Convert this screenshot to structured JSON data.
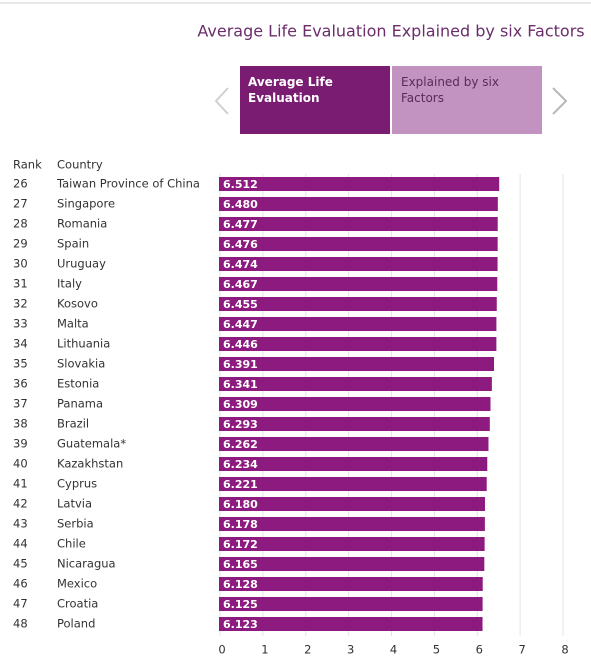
{
  "chart_data": {
    "type": "bar",
    "orientation": "horizontal",
    "title": "Average Life Evaluation Explained by six Factors",
    "tabs": [
      "Average Life Evaluation",
      "Explained by six Factors"
    ],
    "column_headers": [
      "Rank",
      "Country"
    ],
    "ranks": [
      26,
      27,
      28,
      29,
      30,
      31,
      32,
      33,
      34,
      35,
      36,
      37,
      38,
      39,
      40,
      41,
      42,
      43,
      44,
      45,
      46,
      47,
      48
    ],
    "categories": [
      "Taiwan Province of China",
      "Singapore",
      "Romania",
      "Spain",
      "Uruguay",
      "Italy",
      "Kosovo",
      "Malta",
      "Lithuania",
      "Slovakia",
      "Estonia",
      "Panama",
      "Brazil",
      "Guatemala*",
      "Kazakhstan",
      "Cyprus",
      "Latvia",
      "Serbia",
      "Chile",
      "Nicaragua",
      "Mexico",
      "Croatia",
      "Poland"
    ],
    "values": [
      6.512,
      6.48,
      6.477,
      6.476,
      6.474,
      6.467,
      6.455,
      6.447,
      6.446,
      6.391,
      6.341,
      6.309,
      6.293,
      6.262,
      6.234,
      6.221,
      6.18,
      6.178,
      6.172,
      6.165,
      6.128,
      6.125,
      6.123
    ],
    "value_labels": [
      "6.512",
      "6.480",
      "6.477",
      "6.476",
      "6.474",
      "6.467",
      "6.455",
      "6.447",
      "6.446",
      "6.391",
      "6.341",
      "6.309",
      "6.293",
      "6.262",
      "6.234",
      "6.221",
      "6.180",
      "6.178",
      "6.172",
      "6.165",
      "6.128",
      "6.125",
      "6.123"
    ],
    "color": "#8c1a7f",
    "xlim": [
      0,
      8
    ],
    "xticks": [
      0,
      1,
      2,
      3,
      4,
      5,
      6,
      7,
      8
    ],
    "grid": true
  }
}
